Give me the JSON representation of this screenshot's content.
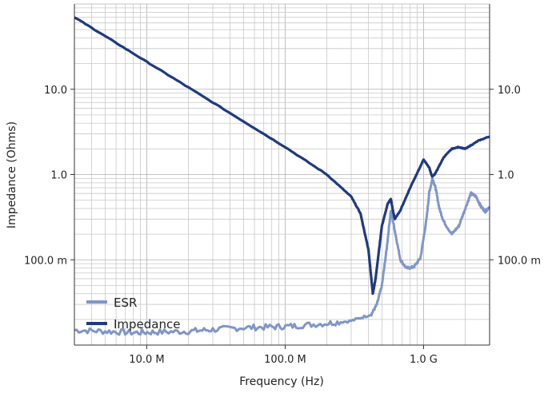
{
  "chart_data": {
    "type": "line",
    "xlabel": "Frequency (Hz)",
    "ylabel": "Impedance (Ohms)",
    "x_scale": "log",
    "y_scale": "log",
    "xlim": [
      3000000,
      3000000000
    ],
    "ylim": [
      0.01,
      100
    ],
    "x_ticks": [
      {
        "value": 10000000,
        "label": "10.0 M"
      },
      {
        "value": 100000000,
        "label": "100.0 M"
      },
      {
        "value": 1000000000,
        "label": "1.0 G"
      }
    ],
    "y_ticks": [
      {
        "value": 0.1,
        "label": "100.0 m"
      },
      {
        "value": 1,
        "label": "1.0"
      },
      {
        "value": 10,
        "label": "10.0"
      }
    ],
    "grid": true,
    "legend_position": "bottom-left",
    "colors": {
      "esr": "#8096c8",
      "impedance": "#1f3a80",
      "grid": "#c8c8c8",
      "axis": "#333333"
    },
    "series": [
      {
        "name": "ESR",
        "x": [
          3000000,
          5000000,
          8000000,
          12000000,
          20000000,
          30000000,
          50000000,
          80000000,
          120000000,
          200000000,
          300000000,
          420000000,
          460000000,
          500000000,
          540000000,
          580000000,
          620000000,
          680000000,
          750000000,
          850000000,
          950000000,
          1050000000,
          1100000000,
          1160000000,
          1220000000,
          1300000000,
          1400000000,
          1600000000,
          1800000000,
          2000000000,
          2200000000,
          2400000000,
          2600000000,
          2800000000,
          3000000000
        ],
        "y": [
          0.015,
          0.0145,
          0.014,
          0.0142,
          0.0145,
          0.0152,
          0.016,
          0.0163,
          0.0168,
          0.018,
          0.0192,
          0.023,
          0.03,
          0.05,
          0.13,
          0.38,
          0.22,
          0.1,
          0.08,
          0.082,
          0.105,
          0.3,
          0.62,
          0.9,
          0.7,
          0.4,
          0.28,
          0.2,
          0.25,
          0.4,
          0.6,
          0.55,
          0.42,
          0.37,
          0.42
        ]
      },
      {
        "name": "Impedance",
        "x": [
          3000000,
          5000000,
          10000000,
          20000000,
          50000000,
          100000000,
          200000000,
          300000000,
          350000000,
          400000000,
          430000000,
          450000000,
          500000000,
          550000000,
          580000000,
          600000000,
          620000000,
          680000000,
          800000000,
          1000000000,
          1100000000,
          1150000000,
          1200000000,
          1260000000,
          1400000000,
          1600000000,
          1800000000,
          2000000000,
          2200000000,
          2500000000,
          3000000000
        ],
        "y": [
          70,
          42,
          21,
          10.5,
          4.2,
          2.1,
          1.0,
          0.55,
          0.35,
          0.13,
          0.04,
          0.06,
          0.25,
          0.45,
          0.52,
          0.38,
          0.3,
          0.38,
          0.7,
          1.5,
          1.2,
          0.95,
          1.0,
          1.15,
          1.6,
          2.0,
          2.1,
          2.0,
          2.2,
          2.5,
          2.8
        ]
      }
    ]
  }
}
